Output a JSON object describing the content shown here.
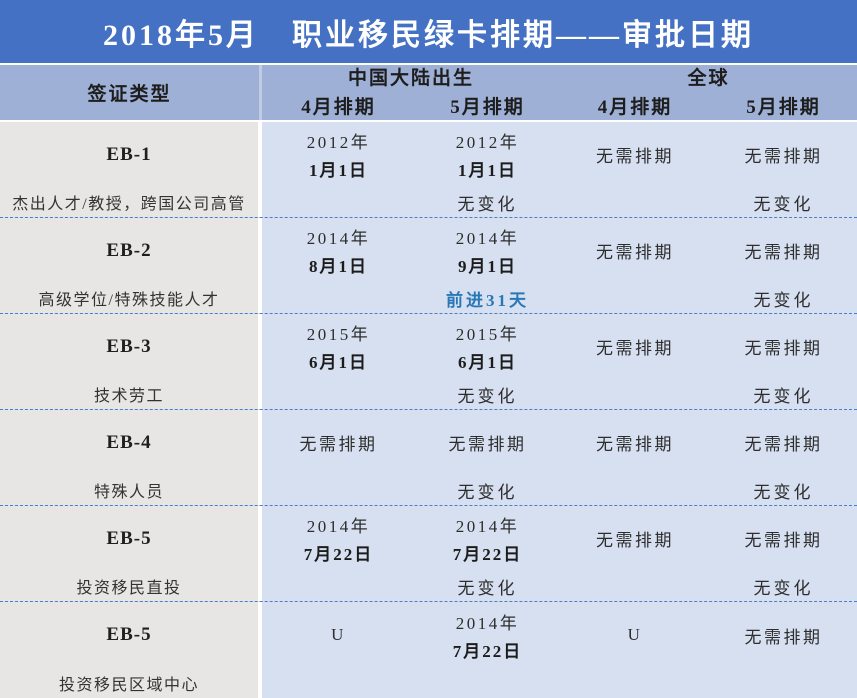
{
  "title": "2018年5月　职业移民绿卡排期——审批日期",
  "header": {
    "visa_type": "签证类型",
    "groups": [
      {
        "label": "中国大陆出生",
        "sub": [
          "4月排期",
          "5月排期"
        ]
      },
      {
        "label": "全球",
        "sub": [
          "4月排期",
          "5月排期"
        ]
      }
    ]
  },
  "colors": {
    "title_bg": "#4471C3",
    "header_bg": "#9FB0D6",
    "data_bg": "#D7E0F0",
    "category_col_bg": "#E8E6E4",
    "dashed_divider": "#4d7ec4",
    "advance_highlight": "#2878B8",
    "title_text": "#ffffff"
  },
  "rows": [
    {
      "category": "EB-1",
      "description": "杰出人才/教授，跨国公司高管",
      "cells": [
        {
          "lines": [
            "2012年",
            "1月1日"
          ],
          "change": ""
        },
        {
          "lines": [
            "2012年",
            "1月1日"
          ],
          "change": "无变化"
        },
        {
          "lines": [
            "无需排期"
          ],
          "change": ""
        },
        {
          "lines": [
            "无需排期"
          ],
          "change": "无变化"
        }
      ]
    },
    {
      "category": "EB-2",
      "description": "高级学位/特殊技能人才",
      "cells": [
        {
          "lines": [
            "2014年",
            "8月1日"
          ],
          "change": ""
        },
        {
          "lines": [
            "2014年",
            "9月1日"
          ],
          "change": "前进31天",
          "highlight": true
        },
        {
          "lines": [
            "无需排期"
          ],
          "change": ""
        },
        {
          "lines": [
            "无需排期"
          ],
          "change": "无变化"
        }
      ]
    },
    {
      "category": "EB-3",
      "description": "技术劳工",
      "cells": [
        {
          "lines": [
            "2015年",
            "6月1日"
          ],
          "change": ""
        },
        {
          "lines": [
            "2015年",
            "6月1日"
          ],
          "change": "无变化"
        },
        {
          "lines": [
            "无需排期"
          ],
          "change": ""
        },
        {
          "lines": [
            "无需排期"
          ],
          "change": "无变化"
        }
      ]
    },
    {
      "category": "EB-4",
      "description": "特殊人员",
      "cells": [
        {
          "lines": [
            "无需排期"
          ],
          "change": ""
        },
        {
          "lines": [
            "无需排期"
          ],
          "change": "无变化"
        },
        {
          "lines": [
            "无需排期"
          ],
          "change": ""
        },
        {
          "lines": [
            "无需排期"
          ],
          "change": "无变化"
        }
      ]
    },
    {
      "category": "EB-5",
      "description": "投资移民直投",
      "cells": [
        {
          "lines": [
            "2014年",
            "7月22日"
          ],
          "change": ""
        },
        {
          "lines": [
            "2014年",
            "7月22日"
          ],
          "change": "无变化"
        },
        {
          "lines": [
            "无需排期"
          ],
          "change": ""
        },
        {
          "lines": [
            "无需排期"
          ],
          "change": "无变化"
        }
      ]
    },
    {
      "category": "EB-5",
      "description": "投资移民区域中心",
      "cells": [
        {
          "lines": [
            "U"
          ],
          "change": ""
        },
        {
          "lines": [
            "2014年",
            "7月22日"
          ],
          "change": ""
        },
        {
          "lines": [
            "U"
          ],
          "change": ""
        },
        {
          "lines": [
            "无需排期"
          ],
          "change": ""
        }
      ]
    }
  ],
  "chart_data": {
    "type": "table",
    "title": "2018年5月　职业移民绿卡排期——审批日期",
    "columns": [
      "签证类型",
      "中国大陆出生-4月排期",
      "中国大陆出生-5月排期",
      "全球-4月排期",
      "全球-5月排期"
    ],
    "rows": [
      [
        "EB-1 杰出人才/教授，跨国公司高管",
        "2012年1月1日",
        "2012年1月1日 无变化",
        "无需排期",
        "无需排期 无变化"
      ],
      [
        "EB-2 高级学位/特殊技能人才",
        "2014年8月1日",
        "2014年9月1日 前进31天",
        "无需排期",
        "无需排期 无变化"
      ],
      [
        "EB-3 技术劳工",
        "2015年6月1日",
        "2015年6月1日 无变化",
        "无需排期",
        "无需排期 无变化"
      ],
      [
        "EB-4 特殊人员",
        "无需排期",
        "无需排期 无变化",
        "无需排期",
        "无需排期 无变化"
      ],
      [
        "EB-5 投资移民直投",
        "2014年7月22日",
        "2014年7月22日 无变化",
        "无需排期",
        "无需排期 无变化"
      ],
      [
        "EB-5 投资移民区域中心",
        "U",
        "2014年7月22日",
        "U",
        "无需排期"
      ]
    ]
  }
}
